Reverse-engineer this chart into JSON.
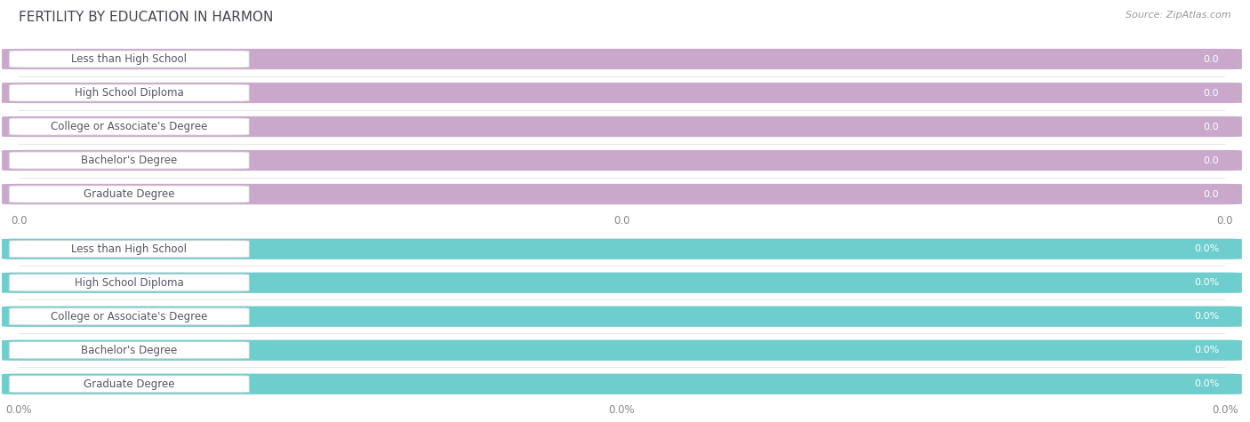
{
  "title": "FERTILITY BY EDUCATION IN HARMON",
  "source": "Source: ZipAtlas.com",
  "categories": [
    "Less than High School",
    "High School Diploma",
    "College or Associate's Degree",
    "Bachelor's Degree",
    "Graduate Degree"
  ],
  "values_top": [
    0.0,
    0.0,
    0.0,
    0.0,
    0.0
  ],
  "values_bottom": [
    0.0,
    0.0,
    0.0,
    0.0,
    0.0
  ],
  "bar_color_top": "#c9a8cc",
  "bar_color_bottom": "#6ecece",
  "title_color_fertility": "#555566",
  "title_color_in": "#8899aa",
  "title_color_harmon": "#555566",
  "source_color": "#999999",
  "bg_color": "#ffffff",
  "bar_bg_color": "#e8e8ec",
  "label_bg": "#ffffff",
  "label_text_color": "#555566",
  "value_text_color": "#ffffff",
  "xtick_labels_top": [
    "0.0",
    "0.0",
    "0.0"
  ],
  "xtick_labels_bottom": [
    "0.0%",
    "0.0%",
    "0.0%"
  ],
  "title_fontsize": 11,
  "source_fontsize": 8,
  "label_fontsize": 8.5,
  "value_fontsize": 8
}
